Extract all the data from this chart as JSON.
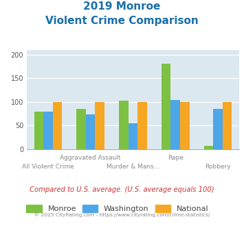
{
  "title_line1": "2019 Monroe",
  "title_line2": "Violent Crime Comparison",
  "categories": [
    "All Violent Crime",
    "Aggravated Assault",
    "Murder & Mans...",
    "Rape",
    "Robbery"
  ],
  "series": {
    "Monroe": [
      79,
      85,
      102,
      180,
      7
    ],
    "Washington": [
      79,
      73,
      54,
      104,
      85
    ],
    "National": [
      100,
      100,
      100,
      100,
      100
    ]
  },
  "colors": {
    "Monroe": "#7dc142",
    "Washington": "#4da6e8",
    "National": "#f5a623"
  },
  "ylim": [
    0,
    210
  ],
  "yticks": [
    0,
    50,
    100,
    150,
    200
  ],
  "bar_width": 0.22,
  "plot_bg": "#dce8f0",
  "title_color": "#1a6fa8",
  "footer_text": "Compared to U.S. average. (U.S. average equals 100)",
  "footer_color": "#cc3333",
  "copyright_text": "© 2025 CityRating.com - https://www.cityrating.com/crime-statistics/",
  "copyright_color": "#888888",
  "legend_labels": [
    "Monroe",
    "Washington",
    "National"
  ],
  "x_top_labels": [
    [
      1,
      "Aggravated Assault"
    ],
    [
      3,
      "Rape"
    ]
  ],
  "x_bot_labels": [
    [
      0,
      "All Violent Crime"
    ],
    [
      2,
      "Murder & Mans..."
    ],
    [
      4,
      "Robbery"
    ]
  ]
}
